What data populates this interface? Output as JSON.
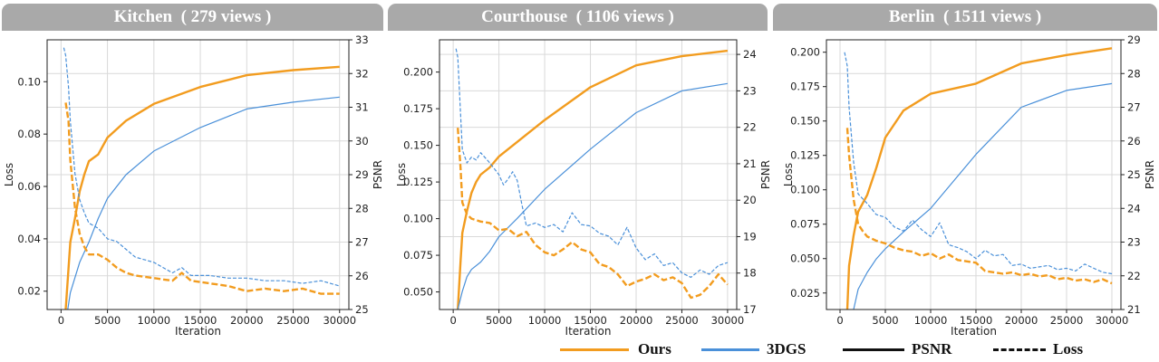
{
  "colors": {
    "ours": "#f29c1f",
    "3dgs": "#4a90d9",
    "header_bg": "#a9a9a9"
  },
  "legend": {
    "ours_label": "Ours",
    "dgs_label": "3DGS",
    "psnr_label": "PSNR",
    "loss_label": "Loss"
  },
  "chart_data": [
    {
      "type": "line",
      "title": "Kitchen  ( 279 views )",
      "xlabel": "Iteration",
      "ylabel": "Loss",
      "y2label": "PSNR",
      "xlim": [
        -1500,
        31000
      ],
      "ylim": [
        0.013,
        0.116
      ],
      "y2lim": [
        25,
        33
      ],
      "xticks": [
        0,
        5000,
        10000,
        15000,
        20000,
        25000,
        30000
      ],
      "yticks": [
        0.02,
        0.04,
        0.06,
        0.08,
        0.1
      ],
      "ytick_labels": [
        "0.02",
        "0.04",
        "0.06",
        "0.08",
        "0.10"
      ],
      "y2ticks": [
        25,
        26,
        27,
        28,
        29,
        30,
        31,
        32,
        33
      ],
      "grid": true,
      "series": [
        {
          "name": "Ours",
          "metric": "PSNR",
          "x": [
            500,
            1000,
            1500,
            2000,
            2500,
            3000,
            4000,
            5000,
            7000,
            10000,
            15000,
            20000,
            25000,
            30000
          ],
          "values": [
            25.0,
            27.0,
            27.7,
            28.5,
            29.0,
            29.4,
            29.6,
            30.1,
            30.6,
            31.1,
            31.6,
            31.95,
            32.1,
            32.2
          ]
        },
        {
          "name": "3DGS",
          "metric": "PSNR",
          "x": [
            500,
            1000,
            2000,
            3000,
            4000,
            5000,
            7000,
            10000,
            15000,
            20000,
            25000,
            30000
          ],
          "values": [
            24.6,
            25.5,
            26.4,
            27.0,
            27.7,
            28.3,
            29.0,
            29.7,
            30.4,
            30.95,
            31.15,
            31.3
          ]
        },
        {
          "name": "Ours",
          "metric": "Loss",
          "x": [
            500,
            800,
            1000,
            1500,
            2000,
            2500,
            3000,
            4000,
            5000,
            6000,
            7000,
            8000,
            10000,
            12000,
            13000,
            14000,
            16000,
            18000,
            20000,
            22000,
            24000,
            26000,
            28000,
            30000
          ],
          "values": [
            0.092,
            0.085,
            0.07,
            0.052,
            0.042,
            0.037,
            0.034,
            0.034,
            0.032,
            0.029,
            0.027,
            0.026,
            0.025,
            0.024,
            0.027,
            0.024,
            0.023,
            0.022,
            0.02,
            0.021,
            0.02,
            0.021,
            0.019,
            0.019
          ]
        },
        {
          "name": "3DGS",
          "metric": "Loss",
          "x": [
            300,
            500,
            800,
            1000,
            1500,
            2000,
            2500,
            3000,
            4000,
            5000,
            6000,
            7000,
            8000,
            10000,
            12000,
            13000,
            14000,
            16000,
            18000,
            20000,
            22000,
            24000,
            26000,
            28000,
            30000
          ],
          "values": [
            0.113,
            0.11,
            0.098,
            0.085,
            0.065,
            0.055,
            0.05,
            0.046,
            0.044,
            0.04,
            0.039,
            0.036,
            0.033,
            0.031,
            0.027,
            0.029,
            0.026,
            0.026,
            0.025,
            0.025,
            0.024,
            0.024,
            0.023,
            0.024,
            0.022
          ]
        }
      ]
    },
    {
      "type": "line",
      "title": "Courthouse  ( 1106 views )",
      "xlabel": "Iteration",
      "ylabel": "Loss",
      "y2label": "PSNR",
      "xlim": [
        -1500,
        31000
      ],
      "ylim": [
        0.038,
        0.222
      ],
      "y2lim": [
        17,
        24.4
      ],
      "xticks": [
        0,
        5000,
        10000,
        15000,
        20000,
        25000,
        30000
      ],
      "yticks": [
        0.05,
        0.075,
        0.1,
        0.125,
        0.15,
        0.175,
        0.2
      ],
      "ytick_labels": [
        "0.050",
        "0.075",
        "0.100",
        "0.125",
        "0.150",
        "0.175",
        "0.200"
      ],
      "y2ticks": [
        17,
        18,
        19,
        20,
        21,
        22,
        23,
        24
      ],
      "grid": true,
      "series": [
        {
          "name": "Ours",
          "metric": "PSNR",
          "x": [
            500,
            800,
            1000,
            1500,
            2000,
            2500,
            3000,
            4000,
            5000,
            7000,
            10000,
            15000,
            20000,
            25000,
            30000
          ],
          "values": [
            17.0,
            18.3,
            19.1,
            19.7,
            20.2,
            20.5,
            20.7,
            20.9,
            21.2,
            21.6,
            22.2,
            23.1,
            23.7,
            23.95,
            24.1
          ]
        },
        {
          "name": "3DGS",
          "metric": "PSNR",
          "x": [
            500,
            1000,
            1500,
            2000,
            3000,
            4000,
            5000,
            7000,
            10000,
            15000,
            20000,
            25000,
            30000
          ],
          "values": [
            17.0,
            17.5,
            17.9,
            18.1,
            18.3,
            18.6,
            19.0,
            19.5,
            20.3,
            21.4,
            22.4,
            23.0,
            23.2
          ]
        },
        {
          "name": "Ours",
          "metric": "Loss",
          "x": [
            500,
            800,
            1000,
            1500,
            2000,
            3000,
            4000,
            5000,
            6000,
            7000,
            8000,
            9000,
            10000,
            11000,
            12000,
            13000,
            14000,
            15000,
            16000,
            17000,
            18000,
            19000,
            20000,
            21000,
            22000,
            23000,
            24000,
            25000,
            26000,
            27000,
            28000,
            29000,
            30000
          ],
          "values": [
            0.162,
            0.135,
            0.111,
            0.103,
            0.1,
            0.098,
            0.097,
            0.092,
            0.093,
            0.088,
            0.091,
            0.082,
            0.077,
            0.075,
            0.079,
            0.084,
            0.079,
            0.077,
            0.069,
            0.067,
            0.062,
            0.054,
            0.057,
            0.059,
            0.062,
            0.058,
            0.06,
            0.056,
            0.046,
            0.048,
            0.054,
            0.062,
            0.055
          ]
        },
        {
          "name": "3DGS",
          "metric": "Loss",
          "x": [
            300,
            500,
            800,
            1000,
            1500,
            2000,
            2500,
            3000,
            4000,
            5000,
            5500,
            6000,
            6500,
            7000,
            7500,
            8000,
            9000,
            10000,
            11000,
            12000,
            13000,
            14000,
            15000,
            16000,
            17000,
            18000,
            19000,
            20000,
            21000,
            22000,
            23000,
            24000,
            25000,
            26000,
            27000,
            28000,
            29000,
            30000
          ],
          "values": [
            0.216,
            0.21,
            0.172,
            0.147,
            0.138,
            0.142,
            0.14,
            0.145,
            0.138,
            0.13,
            0.123,
            0.127,
            0.132,
            0.126,
            0.11,
            0.095,
            0.097,
            0.094,
            0.096,
            0.091,
            0.104,
            0.096,
            0.095,
            0.09,
            0.088,
            0.082,
            0.094,
            0.08,
            0.072,
            0.076,
            0.068,
            0.07,
            0.063,
            0.06,
            0.065,
            0.062,
            0.068,
            0.07
          ]
        }
      ]
    },
    {
      "type": "line",
      "title": "Berlin  ( 1511 views )",
      "xlabel": "Iteration",
      "ylabel": "Loss",
      "y2label": "PSNR",
      "xlim": [
        -1500,
        31000
      ],
      "ylim": [
        0.013,
        0.209
      ],
      "y2lim": [
        21,
        29
      ],
      "xticks": [
        0,
        5000,
        10000,
        15000,
        20000,
        25000,
        30000
      ],
      "yticks": [
        0.025,
        0.05,
        0.075,
        0.1,
        0.125,
        0.15,
        0.175,
        0.2
      ],
      "ytick_labels": [
        "0.025",
        "0.050",
        "0.075",
        "0.100",
        "0.125",
        "0.150",
        "0.175",
        "0.200"
      ],
      "y2ticks": [
        21,
        22,
        23,
        24,
        25,
        26,
        27,
        28,
        29
      ],
      "grid": true,
      "series": [
        {
          "name": "Ours",
          "metric": "PSNR",
          "x": [
            800,
            1000,
            1500,
            2000,
            3000,
            4000,
            5000,
            7000,
            10000,
            15000,
            20000,
            25000,
            30000
          ],
          "values": [
            21.0,
            22.3,
            23.2,
            23.9,
            24.4,
            25.2,
            26.1,
            26.9,
            27.4,
            27.7,
            28.3,
            28.55,
            28.75
          ]
        },
        {
          "name": "3DGS",
          "metric": "PSNR",
          "x": [
            1500,
            2000,
            3000,
            4000,
            5000,
            7000,
            10000,
            15000,
            20000,
            25000,
            30000
          ],
          "values": [
            21.0,
            21.6,
            22.1,
            22.5,
            22.8,
            23.3,
            24.0,
            25.6,
            27.0,
            27.5,
            27.7
          ]
        },
        {
          "name": "Ours",
          "metric": "Loss",
          "x": [
            800,
            1000,
            1500,
            2000,
            2500,
            3000,
            4000,
            5000,
            6000,
            7000,
            8000,
            9000,
            10000,
            11000,
            12000,
            13000,
            14000,
            15000,
            16000,
            17000,
            18000,
            19000,
            20000,
            21000,
            22000,
            23000,
            24000,
            25000,
            26000,
            27000,
            28000,
            29000,
            30000
          ],
          "values": [
            0.145,
            0.125,
            0.093,
            0.075,
            0.07,
            0.066,
            0.063,
            0.061,
            0.058,
            0.056,
            0.055,
            0.052,
            0.054,
            0.05,
            0.053,
            0.049,
            0.048,
            0.047,
            0.041,
            0.04,
            0.039,
            0.04,
            0.038,
            0.039,
            0.037,
            0.038,
            0.035,
            0.036,
            0.034,
            0.035,
            0.033,
            0.035,
            0.032
          ]
        },
        {
          "name": "3DGS",
          "metric": "Loss",
          "x": [
            500,
            800,
            1000,
            1500,
            2000,
            3000,
            4000,
            5000,
            6000,
            7000,
            8000,
            9000,
            10000,
            11000,
            12000,
            13000,
            14000,
            15000,
            16000,
            17000,
            18000,
            19000,
            20000,
            21000,
            22000,
            23000,
            24000,
            25000,
            26000,
            27000,
            28000,
            29000,
            30000
          ],
          "values": [
            0.2,
            0.19,
            0.16,
            0.12,
            0.097,
            0.09,
            0.082,
            0.08,
            0.073,
            0.07,
            0.078,
            0.071,
            0.066,
            0.076,
            0.06,
            0.058,
            0.055,
            0.05,
            0.056,
            0.052,
            0.053,
            0.045,
            0.046,
            0.043,
            0.044,
            0.045,
            0.042,
            0.043,
            0.041,
            0.046,
            0.043,
            0.04,
            0.039
          ]
        }
      ]
    }
  ]
}
